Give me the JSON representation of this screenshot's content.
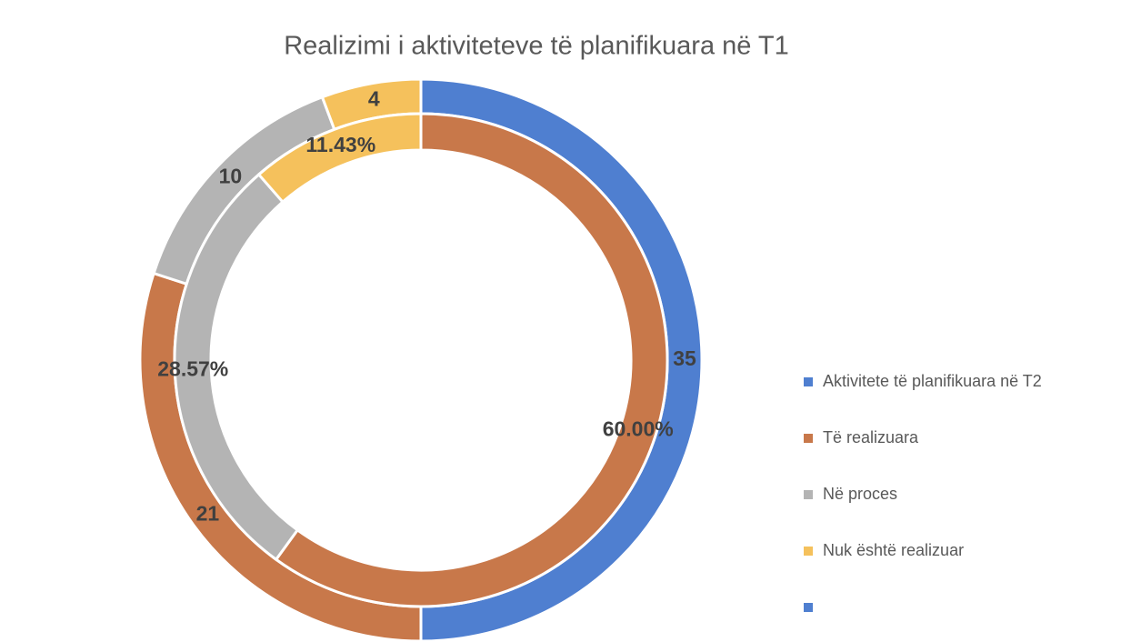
{
  "chart_data": {
    "type": "double-donut",
    "title": "Realizimi i aktiviteteve të planifikuara në T1",
    "legend": [
      {
        "name": "Aktivitete të planifikuara në T2",
        "color": "#4f7fd0"
      },
      {
        "name": "Të realizuara",
        "color": "#c8784a"
      },
      {
        "name": "Në proces",
        "color": "#b4b4b4"
      },
      {
        "name": "Nuk është realizuar",
        "color": "#f5c15c"
      },
      {
        "name": null,
        "color": "#4f7fd0"
      }
    ],
    "rings": [
      {
        "values": [
          35,
          21,
          10,
          4
        ],
        "colors": [
          "#4f7fd0",
          "#c8784a",
          "#b4b4b4",
          "#f5c15c"
        ]
      },
      {
        "values": [
          60.0,
          28.57,
          11.43
        ],
        "value_labels": [
          "60.00%",
          "28.57%",
          "11.43%"
        ],
        "colors": [
          "#c8784a",
          "#b4b4b4",
          "#f5c15c"
        ]
      }
    ]
  }
}
